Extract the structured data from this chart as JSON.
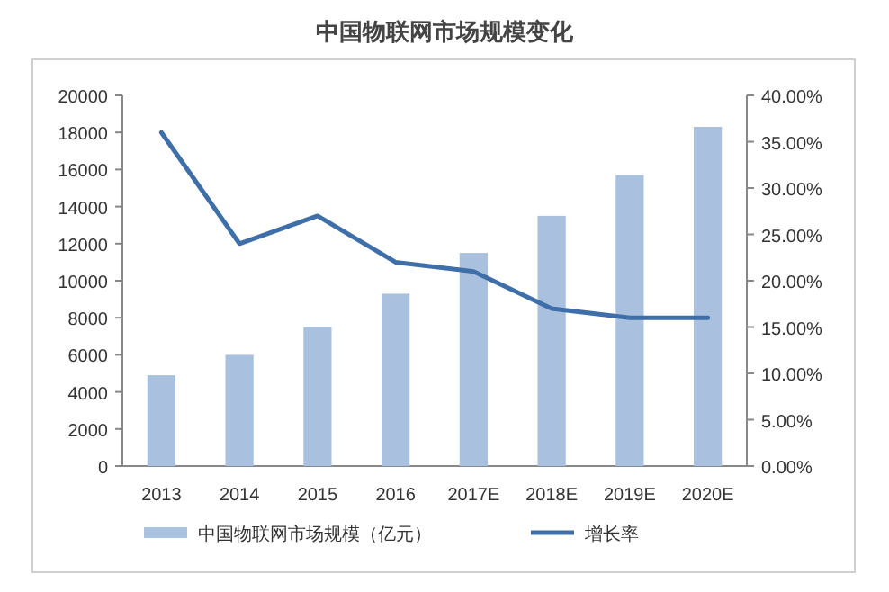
{
  "chart_data": {
    "type": "bar",
    "title": "中国物联网市场规模变化",
    "categories": [
      "2013",
      "2014",
      "2015",
      "2016",
      "2017E",
      "2018E",
      "2019E",
      "2020E"
    ],
    "series": [
      {
        "name": "中国物联网市场规模（亿元）",
        "color": "#a9c1de",
        "values": [
          4900,
          6000,
          7500,
          9300,
          11500,
          13500,
          15700,
          18300
        ]
      },
      {
        "name": "增长率",
        "type": "line",
        "axis": "y2",
        "color": "#3f6fa8",
        "values": [
          36,
          24,
          27,
          22,
          21,
          17,
          16,
          16
        ]
      }
    ],
    "ylim": [
      0,
      20000
    ],
    "yticks": [
      0,
      2000,
      4000,
      6000,
      8000,
      10000,
      12000,
      14000,
      16000,
      18000,
      20000
    ],
    "y2lim": [
      0,
      40
    ],
    "y2ticks": [
      {
        "value": 0,
        "label": "0.00%"
      },
      {
        "value": 5,
        "label": "5.00%"
      },
      {
        "value": 10,
        "label": "10.00%"
      },
      {
        "value": 15,
        "label": "15.00%"
      },
      {
        "value": 20,
        "label": "20.00%"
      },
      {
        "value": 25,
        "label": "25.00%"
      },
      {
        "value": 30,
        "label": "30.00%"
      },
      {
        "value": 35,
        "label": "35.00%"
      },
      {
        "value": 40,
        "label": "40.00%"
      }
    ],
    "legend": "bottom"
  }
}
